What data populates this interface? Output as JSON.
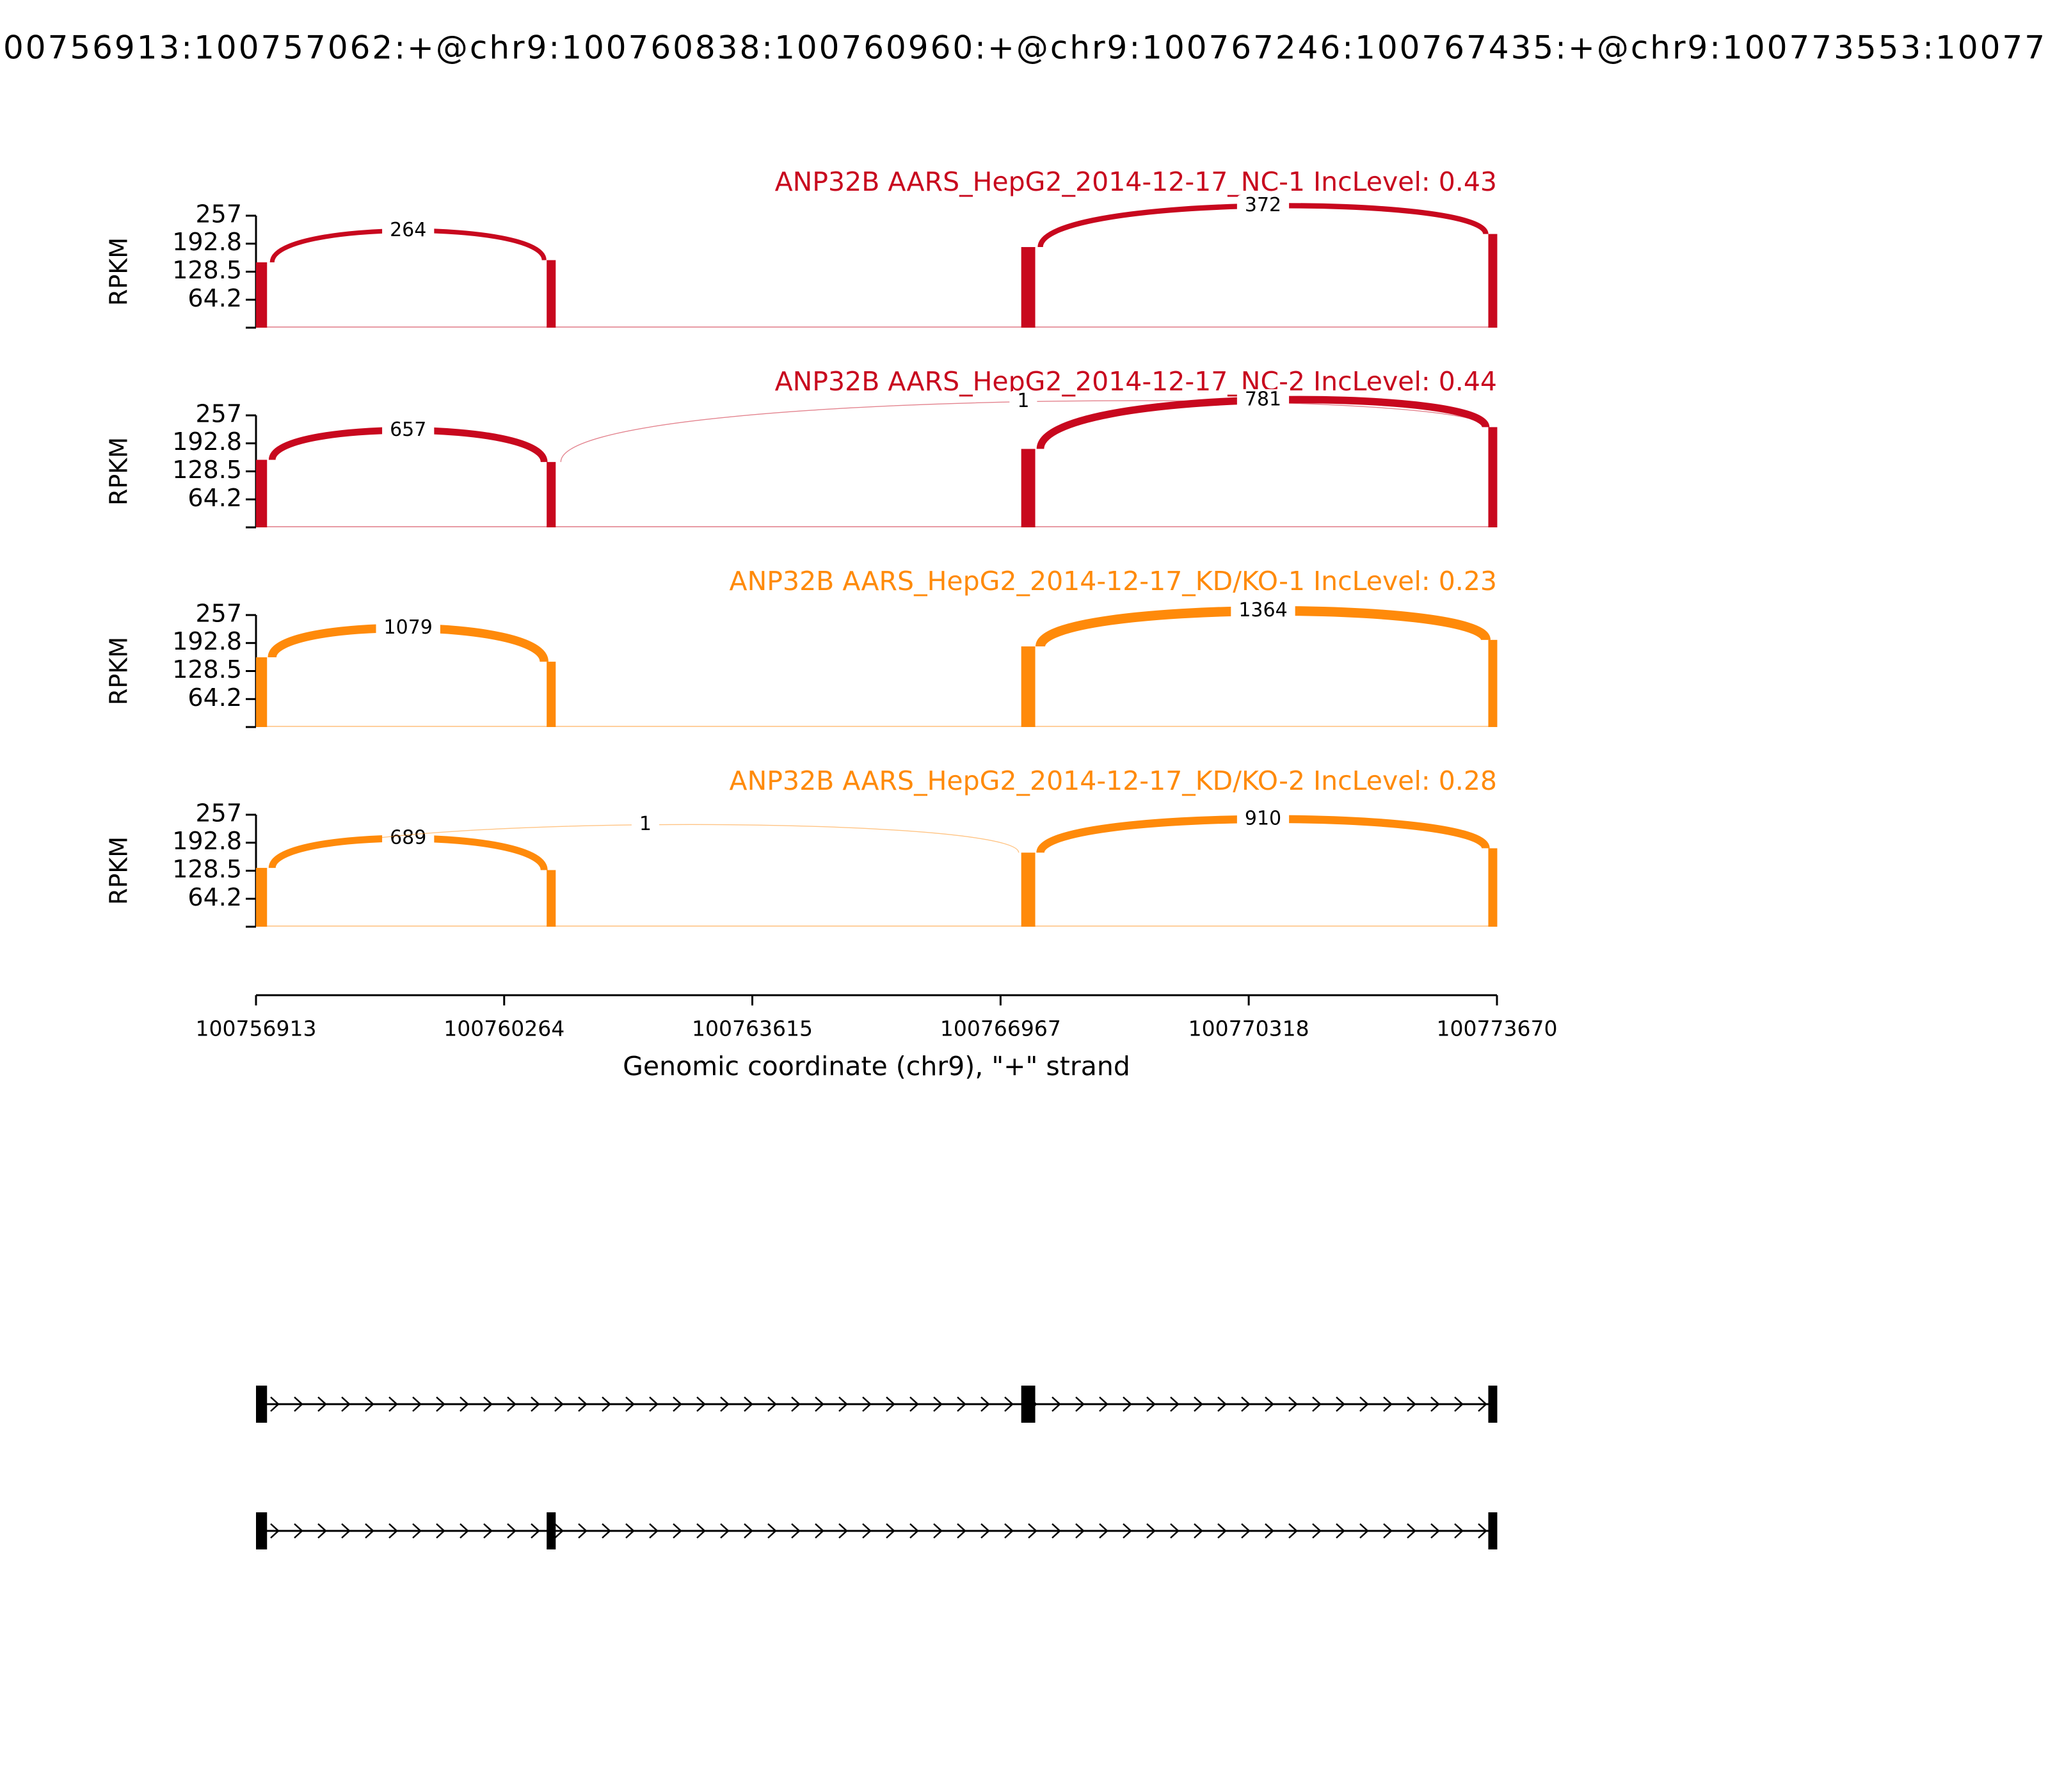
{
  "title": "00756913:100757062:+@chr9:100760838:100760960:+@chr9:100767246:100767435:+@chr9:100773553:10077",
  "exons": [
    [
      100756913,
      100757062
    ],
    [
      100760838,
      100760960
    ],
    [
      100767246,
      100767435
    ],
    [
      100773553,
      100773670
    ]
  ],
  "xaxis": {
    "label": "Genomic coordinate (chr9), \"+\" strand",
    "xlim": [
      100756913,
      100773670
    ],
    "xticks": [
      100756913,
      100760264,
      100763615,
      100766967,
      100770318,
      100773670
    ]
  },
  "chart_data": [
    {
      "type": "sashimi",
      "title": "ANP32B AARS_HepG2_2014-12-17_NC-1 IncLevel: 0.43",
      "color": "#c8081e",
      "ylabel": "RPKM",
      "ylim": [
        0,
        257
      ],
      "yticks": [
        64.2,
        128.5,
        192.8,
        257
      ],
      "coverage": [
        150,
        155,
        185,
        215
      ],
      "junctions": [
        {
          "start": 100757062,
          "end": 100760838,
          "count": 264
        },
        {
          "start": 100767435,
          "end": 100773553,
          "count": 372
        }
      ]
    },
    {
      "type": "sashimi",
      "title": "ANP32B AARS_HepG2_2014-12-17_NC-2 IncLevel: 0.44",
      "color": "#c8081e",
      "ylabel": "RPKM",
      "ylim": [
        0,
        257
      ],
      "yticks": [
        64.2,
        128.5,
        192.8,
        257
      ],
      "coverage": [
        155,
        150,
        180,
        230
      ],
      "junctions": [
        {
          "start": 100757062,
          "end": 100760838,
          "count": 657
        },
        {
          "start": 100760960,
          "end": 100773553,
          "count": 1
        },
        {
          "start": 100767435,
          "end": 100773553,
          "count": 781
        }
      ]
    },
    {
      "type": "sashimi",
      "title": "ANP32B AARS_HepG2_2014-12-17_KD/KO-1 IncLevel: 0.23",
      "color": "#ff8a0a",
      "ylabel": "RPKM",
      "ylim": [
        0,
        257
      ],
      "yticks": [
        64.2,
        128.5,
        192.8,
        257
      ],
      "coverage": [
        160,
        150,
        185,
        200
      ],
      "junctions": [
        {
          "start": 100757062,
          "end": 100760838,
          "count": 1079
        },
        {
          "start": 100767435,
          "end": 100773553,
          "count": 1364
        }
      ]
    },
    {
      "type": "sashimi",
      "title": "ANP32B AARS_HepG2_2014-12-17_KD/KO-2 IncLevel: 0.28",
      "color": "#ff8a0a",
      "ylabel": "RPKM",
      "ylim": [
        0,
        257
      ],
      "yticks": [
        64.2,
        128.5,
        192.8,
        257
      ],
      "coverage": [
        135,
        130,
        170,
        180
      ],
      "junctions": [
        {
          "start": 100757062,
          "end": 100760838,
          "count": 689
        },
        {
          "start": 100757062,
          "end": 100767246,
          "count": 1
        },
        {
          "start": 100767435,
          "end": 100773553,
          "count": 910
        }
      ]
    }
  ],
  "transcripts": [
    {
      "exons": [
        [
          100756913,
          100757062
        ],
        [
          100767246,
          100767435
        ],
        [
          100773553,
          100773670
        ]
      ]
    },
    {
      "exons": [
        [
          100756913,
          100757062
        ],
        [
          100760838,
          100760960
        ],
        [
          100773553,
          100773670
        ]
      ]
    }
  ]
}
